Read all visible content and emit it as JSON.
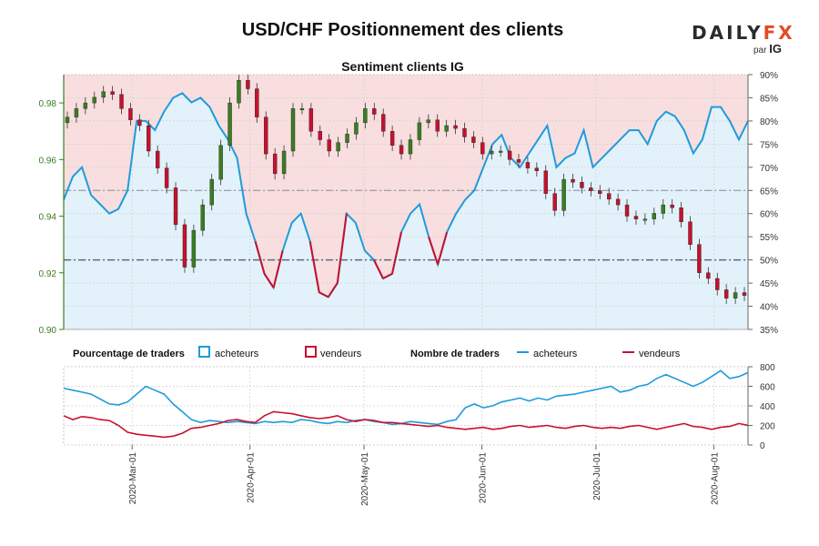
{
  "header": {
    "title": "USD/CHF Positionnement des clients",
    "subtitle": "Sentiment clients IG",
    "brand_main": "DAILY",
    "brand_accent": "FX",
    "brand_by": "par",
    "brand_ig": "IG"
  },
  "legend": {
    "pct_title": "Pourcentage de traders",
    "pct_buyers": "acheteurs",
    "pct_sellers": "vendeurs",
    "count_title": "Nombre de traders",
    "count_buyers": "acheteurs",
    "count_sellers": "vendeurs"
  },
  "colors": {
    "buyers": "#1e9bdc",
    "sellers": "#c8102e",
    "buyers_fill": "#e3f2fa",
    "sellers_fill": "#f8dede",
    "candle_up": "#3a7d22",
    "candle_down": "#c8102e"
  },
  "chart_data": [
    {
      "type": "candlestick",
      "title": "Sentiment clients IG",
      "instrument": "USD/CHF",
      "price_axis": {
        "ticks": [
          "0.90",
          "0.92",
          "0.94",
          "0.96",
          "0.98"
        ],
        "range": [
          0.9,
          0.99
        ]
      },
      "percent_axis": {
        "ticks": [
          "35%",
          "40%",
          "45%",
          "50%",
          "55%",
          "60%",
          "65%",
          "70%",
          "75%",
          "80%",
          "85%",
          "90%"
        ],
        "range": [
          35,
          90
        ]
      },
      "x_ticks": [
        "2020-Mar-01",
        "2020-Apr-01",
        "2020-May-01",
        "2020-Jun-01",
        "2020-Jul-01",
        "2020-Aug-01"
      ],
      "x_range_days": [
        -18,
        162
      ],
      "tick_days": [
        0,
        31,
        61,
        92,
        122,
        153
      ],
      "reference_lines_percent": [
        50,
        65
      ],
      "price_close": [
        0.975,
        0.978,
        0.98,
        0.982,
        0.984,
        0.983,
        0.978,
        0.974,
        0.972,
        0.963,
        0.957,
        0.95,
        0.937,
        0.922,
        0.935,
        0.944,
        0.953,
        0.965,
        0.98,
        0.988,
        0.985,
        0.975,
        0.962,
        0.955,
        0.963,
        0.978,
        0.978,
        0.97,
        0.967,
        0.963,
        0.966,
        0.969,
        0.973,
        0.978,
        0.976,
        0.97,
        0.965,
        0.962,
        0.967,
        0.973,
        0.974,
        0.97,
        0.972,
        0.971,
        0.968,
        0.966,
        0.962,
        0.963,
        0.963,
        0.96,
        0.959,
        0.957,
        0.956,
        0.948,
        0.942,
        0.953,
        0.952,
        0.95,
        0.949,
        0.948,
        0.946,
        0.944,
        0.94,
        0.939,
        0.939,
        0.941,
        0.944,
        0.943,
        0.938,
        0.93,
        0.92,
        0.918,
        0.914,
        0.911,
        0.913,
        0.912
      ],
      "percent_buyers": [
        63,
        68,
        70,
        64,
        62,
        60,
        61,
        65,
        80,
        80,
        78,
        82,
        85,
        86,
        84,
        85,
        83,
        79,
        76,
        72,
        60,
        54,
        47,
        44,
        52,
        58,
        60,
        54,
        43,
        42,
        45,
        60,
        58,
        52,
        50,
        46,
        47,
        56,
        60,
        62,
        55,
        49,
        56,
        60,
        63,
        65,
        70,
        75,
        77,
        72,
        70,
        73,
        76,
        79,
        70,
        72,
        73,
        78,
        70,
        72,
        74,
        76,
        78,
        78,
        75,
        80,
        82,
        81,
        78,
        73,
        76,
        83,
        83,
        80,
        76,
        80
      ],
      "percent_sellers": [
        37,
        32,
        30,
        36,
        38,
        40,
        39,
        35,
        20,
        20,
        22,
        18,
        15,
        14,
        16,
        15,
        17,
        21,
        24,
        28,
        40,
        46,
        53,
        56,
        48,
        42,
        40,
        46,
        57,
        58,
        55,
        40,
        42,
        48,
        50,
        54,
        53,
        44,
        40,
        38,
        45,
        51,
        44,
        40,
        37,
        35,
        30,
        25,
        23,
        28,
        30,
        27,
        24,
        21,
        30,
        28,
        27,
        22,
        30,
        28,
        26,
        24,
        22,
        22,
        25,
        20,
        18,
        19,
        22,
        27,
        24,
        17,
        17,
        20,
        24,
        20
      ]
    },
    {
      "type": "line",
      "title": "Nombre de traders",
      "y_axis": {
        "ticks": [
          "0",
          "200",
          "400",
          "600",
          "800"
        ],
        "range": [
          0,
          800
        ]
      },
      "series": [
        {
          "name": "acheteurs",
          "values": [
            580,
            560,
            540,
            520,
            470,
            420,
            410,
            440,
            520,
            600,
            560,
            520,
            420,
            340,
            260,
            230,
            250,
            240,
            230,
            240,
            230,
            220,
            240,
            230,
            240,
            230,
            260,
            250,
            230,
            220,
            240,
            230,
            250,
            260,
            240,
            230,
            210,
            220,
            240,
            230,
            220,
            210,
            240,
            260,
            380,
            420,
            380,
            400,
            440,
            460,
            480,
            450,
            480,
            460,
            500,
            510,
            520,
            540,
            560,
            580,
            600,
            540,
            560,
            600,
            620,
            680,
            720,
            680,
            640,
            600,
            640,
            700,
            760,
            680,
            700,
            740
          ]
        },
        {
          "name": "vendeurs",
          "values": [
            300,
            260,
            290,
            280,
            260,
            250,
            200,
            130,
            110,
            100,
            90,
            80,
            90,
            120,
            170,
            180,
            200,
            220,
            250,
            260,
            240,
            230,
            300,
            340,
            330,
            320,
            300,
            280,
            270,
            280,
            300,
            260,
            240,
            260,
            250,
            230,
            230,
            220,
            210,
            200,
            190,
            200,
            180,
            170,
            160,
            170,
            180,
            160,
            170,
            190,
            200,
            180,
            190,
            200,
            180,
            170,
            190,
            200,
            180,
            170,
            180,
            170,
            190,
            200,
            180,
            160,
            180,
            200,
            220,
            190,
            180,
            160,
            180,
            190,
            220,
            200
          ]
        }
      ]
    }
  ]
}
